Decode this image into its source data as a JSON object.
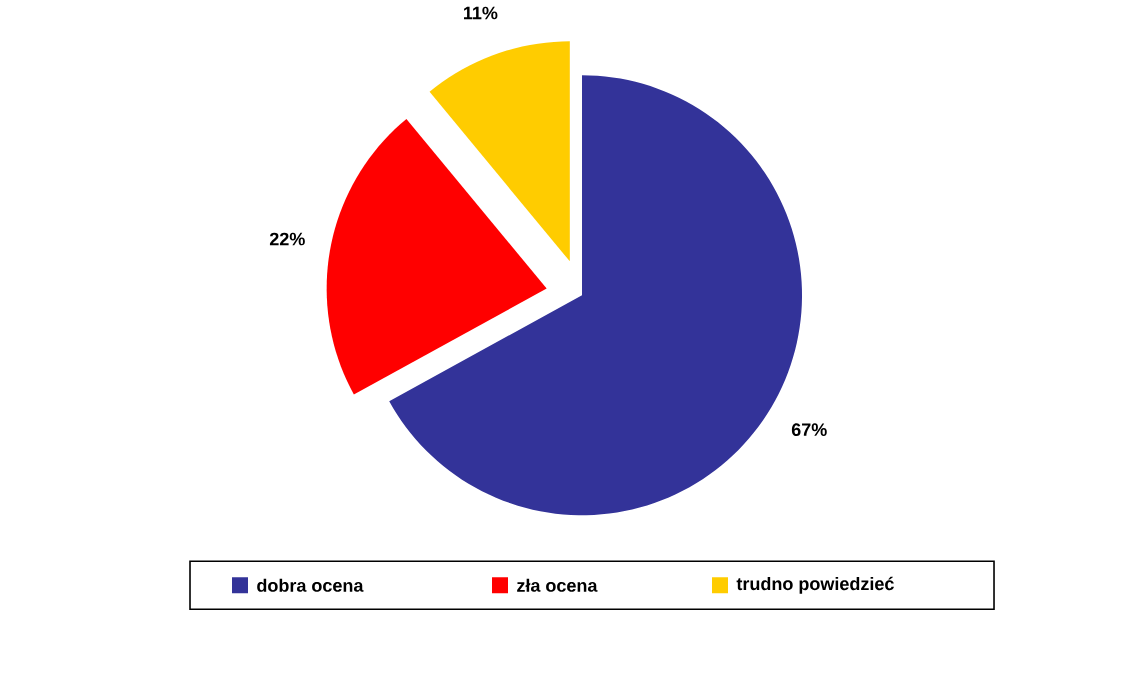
{
  "chart_data": {
    "type": "pie",
    "categories": [
      "dobra ocena",
      "zła ocena",
      "trudno powiedzieć"
    ],
    "values": [
      67,
      22,
      11
    ],
    "colors": [
      "#333399",
      "#ff0000",
      "#ffcc00"
    ],
    "value_labels": [
      "67%",
      "22%",
      "11%"
    ],
    "legend": "bottom"
  }
}
